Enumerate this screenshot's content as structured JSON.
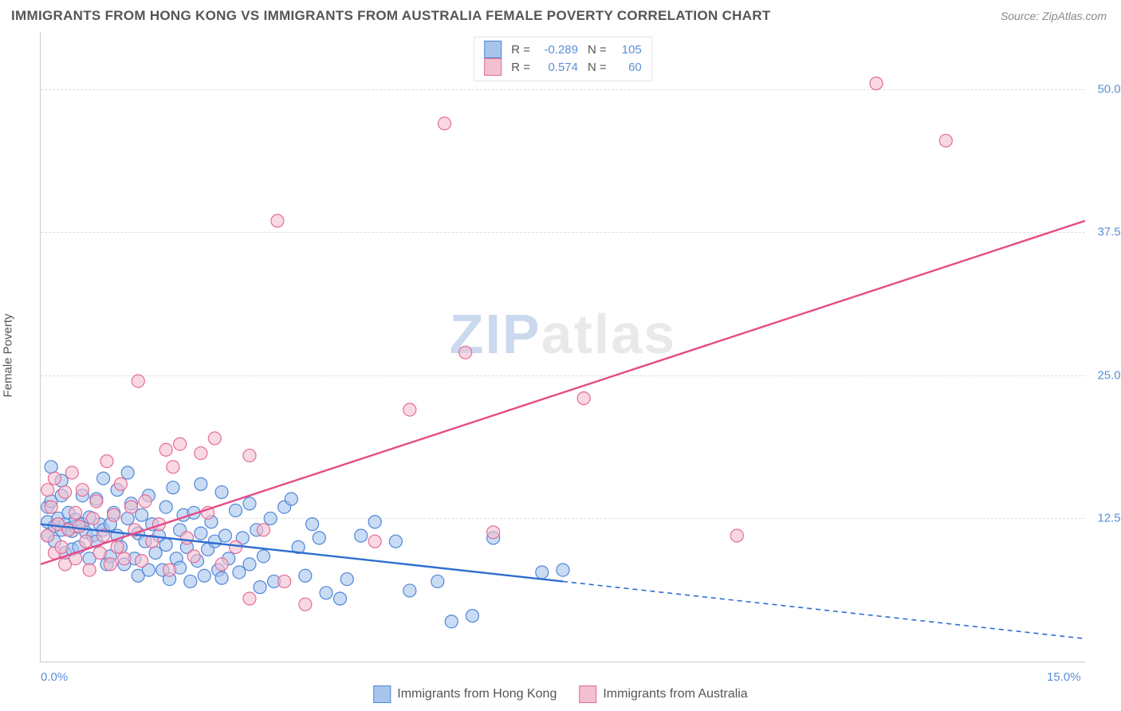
{
  "title": "IMMIGRANTS FROM HONG KONG VS IMMIGRANTS FROM AUSTRALIA FEMALE POVERTY CORRELATION CHART",
  "source": "Source: ZipAtlas.com",
  "watermark": {
    "zip": "ZIP",
    "atlas": "atlas"
  },
  "y_axis_title": "Female Poverty",
  "chart": {
    "type": "scatter-correlation",
    "background_color": "#ffffff",
    "grid_color": "#dddddd",
    "axis_color": "#cccccc",
    "tick_label_color": "#5b8fd6",
    "tick_fontsize": 15,
    "title_color": "#555555",
    "title_fontsize": 17,
    "xlim": [
      0,
      15
    ],
    "ylim": [
      0,
      55
    ],
    "y_ticks": [
      12.5,
      25.0,
      37.5,
      50.0
    ],
    "y_tick_labels": [
      "12.5%",
      "25.0%",
      "37.5%",
      "50.0%"
    ],
    "x_ticks": [
      0,
      15
    ],
    "x_tick_labels": [
      "0.0%",
      "15.0%"
    ],
    "marker_radius": 8,
    "marker_opacity": 0.6,
    "marker_stroke_width": 1.2,
    "trend_line_width": 2.4,
    "series": [
      {
        "name": "Immigrants from Hong Kong",
        "fill": "#a7c5ec",
        "stroke": "#4f86d9",
        "trend_color": "#2e6dd0",
        "R": "-0.289",
        "N": "105",
        "trend": {
          "x1": 0,
          "y1": 12.0,
          "x2": 15,
          "y2": 2.0,
          "solid_until_x": 7.5
        },
        "points": [
          [
            0.1,
            12.2
          ],
          [
            0.1,
            11.0
          ],
          [
            0.1,
            13.5
          ],
          [
            0.15,
            17.0
          ],
          [
            0.15,
            14.0
          ],
          [
            0.2,
            11.8
          ],
          [
            0.2,
            10.5
          ],
          [
            0.25,
            12.5
          ],
          [
            0.3,
            15.8
          ],
          [
            0.3,
            14.5
          ],
          [
            0.3,
            11.5
          ],
          [
            0.35,
            9.5
          ],
          [
            0.35,
            12.0
          ],
          [
            0.4,
            11.6
          ],
          [
            0.4,
            13.0
          ],
          [
            0.45,
            9.8
          ],
          [
            0.45,
            11.4
          ],
          [
            0.5,
            11.8
          ],
          [
            0.5,
            12.4
          ],
          [
            0.55,
            10.0
          ],
          [
            0.6,
            12.0
          ],
          [
            0.6,
            14.5
          ],
          [
            0.65,
            11.3
          ],
          [
            0.7,
            9.0
          ],
          [
            0.7,
            12.6
          ],
          [
            0.75,
            11.0
          ],
          [
            0.8,
            14.2
          ],
          [
            0.8,
            10.5
          ],
          [
            0.85,
            12.0
          ],
          [
            0.9,
            16.0
          ],
          [
            0.9,
            11.5
          ],
          [
            0.95,
            8.5
          ],
          [
            1.0,
            12.0
          ],
          [
            1.0,
            9.2
          ],
          [
            1.05,
            13.0
          ],
          [
            1.1,
            11.0
          ],
          [
            1.1,
            15.0
          ],
          [
            1.15,
            10.0
          ],
          [
            1.2,
            8.5
          ],
          [
            1.25,
            12.5
          ],
          [
            1.25,
            16.5
          ],
          [
            1.3,
            13.8
          ],
          [
            1.35,
            9.0
          ],
          [
            1.4,
            11.2
          ],
          [
            1.4,
            7.5
          ],
          [
            1.45,
            12.8
          ],
          [
            1.5,
            10.5
          ],
          [
            1.55,
            14.5
          ],
          [
            1.55,
            8.0
          ],
          [
            1.6,
            12.0
          ],
          [
            1.65,
            9.5
          ],
          [
            1.7,
            11.0
          ],
          [
            1.75,
            8.0
          ],
          [
            1.8,
            13.5
          ],
          [
            1.8,
            10.2
          ],
          [
            1.85,
            7.2
          ],
          [
            1.9,
            15.2
          ],
          [
            1.95,
            9.0
          ],
          [
            2.0,
            11.5
          ],
          [
            2.0,
            8.2
          ],
          [
            2.05,
            12.8
          ],
          [
            2.1,
            10.0
          ],
          [
            2.15,
            7.0
          ],
          [
            2.2,
            13.0
          ],
          [
            2.25,
            8.8
          ],
          [
            2.3,
            15.5
          ],
          [
            2.3,
            11.2
          ],
          [
            2.35,
            7.5
          ],
          [
            2.4,
            9.8
          ],
          [
            2.45,
            12.2
          ],
          [
            2.5,
            10.5
          ],
          [
            2.55,
            8.0
          ],
          [
            2.6,
            14.8
          ],
          [
            2.6,
            7.3
          ],
          [
            2.65,
            11.0
          ],
          [
            2.7,
            9.0
          ],
          [
            2.8,
            13.2
          ],
          [
            2.85,
            7.8
          ],
          [
            2.9,
            10.8
          ],
          [
            3.0,
            13.8
          ],
          [
            3.0,
            8.5
          ],
          [
            3.1,
            11.5
          ],
          [
            3.15,
            6.5
          ],
          [
            3.2,
            9.2
          ],
          [
            3.3,
            12.5
          ],
          [
            3.35,
            7.0
          ],
          [
            3.5,
            13.5
          ],
          [
            3.6,
            14.2
          ],
          [
            3.7,
            10.0
          ],
          [
            3.8,
            7.5
          ],
          [
            3.9,
            12.0
          ],
          [
            4.0,
            10.8
          ],
          [
            4.1,
            6.0
          ],
          [
            4.3,
            5.5
          ],
          [
            4.4,
            7.2
          ],
          [
            4.6,
            11.0
          ],
          [
            4.8,
            12.2
          ],
          [
            5.1,
            10.5
          ],
          [
            5.3,
            6.2
          ],
          [
            5.7,
            7.0
          ],
          [
            5.9,
            3.5
          ],
          [
            6.2,
            4.0
          ],
          [
            6.5,
            10.8
          ],
          [
            7.2,
            7.8
          ],
          [
            7.5,
            8.0
          ]
        ]
      },
      {
        "name": "Immigrants from Australia",
        "fill": "#f3c0cf",
        "stroke": "#e76b96",
        "trend_color": "#e64b87",
        "R": "0.574",
        "N": "60",
        "trend": {
          "x1": 0,
          "y1": 8.5,
          "x2": 15,
          "y2": 38.5,
          "solid_until_x": 15
        },
        "points": [
          [
            0.1,
            15.0
          ],
          [
            0.1,
            11.0
          ],
          [
            0.15,
            13.5
          ],
          [
            0.2,
            9.5
          ],
          [
            0.2,
            16.0
          ],
          [
            0.25,
            12.0
          ],
          [
            0.3,
            10.0
          ],
          [
            0.35,
            14.8
          ],
          [
            0.35,
            8.5
          ],
          [
            0.4,
            11.5
          ],
          [
            0.45,
            16.5
          ],
          [
            0.5,
            13.0
          ],
          [
            0.5,
            9.0
          ],
          [
            0.55,
            11.8
          ],
          [
            0.6,
            15.0
          ],
          [
            0.65,
            10.5
          ],
          [
            0.7,
            8.0
          ],
          [
            0.75,
            12.5
          ],
          [
            0.8,
            14.0
          ],
          [
            0.85,
            9.5
          ],
          [
            0.9,
            11.0
          ],
          [
            0.95,
            17.5
          ],
          [
            1.0,
            8.5
          ],
          [
            1.05,
            12.8
          ],
          [
            1.1,
            10.0
          ],
          [
            1.15,
            15.5
          ],
          [
            1.2,
            9.0
          ],
          [
            1.3,
            13.5
          ],
          [
            1.35,
            11.5
          ],
          [
            1.4,
            24.5
          ],
          [
            1.45,
            8.8
          ],
          [
            1.5,
            14.0
          ],
          [
            1.6,
            10.5
          ],
          [
            1.7,
            12.0
          ],
          [
            1.8,
            18.5
          ],
          [
            1.85,
            8.0
          ],
          [
            1.9,
            17.0
          ],
          [
            2.0,
            19.0
          ],
          [
            2.1,
            10.8
          ],
          [
            2.2,
            9.2
          ],
          [
            2.3,
            18.2
          ],
          [
            2.4,
            13.0
          ],
          [
            2.5,
            19.5
          ],
          [
            2.6,
            8.5
          ],
          [
            2.8,
            10.0
          ],
          [
            3.0,
            18.0
          ],
          [
            3.0,
            5.5
          ],
          [
            3.2,
            11.5
          ],
          [
            3.4,
            38.5
          ],
          [
            3.5,
            7.0
          ],
          [
            3.8,
            5.0
          ],
          [
            4.8,
            10.5
          ],
          [
            5.3,
            22.0
          ],
          [
            5.8,
            47.0
          ],
          [
            6.1,
            27.0
          ],
          [
            7.8,
            23.0
          ],
          [
            10.0,
            11.0
          ],
          [
            12.0,
            50.5
          ],
          [
            13.0,
            45.5
          ],
          [
            6.5,
            11.3
          ]
        ]
      }
    ]
  },
  "bottom_legend": [
    {
      "label": "Immigrants from Hong Kong",
      "fill": "#a7c5ec",
      "stroke": "#4f86d9"
    },
    {
      "label": "Immigrants from Australia",
      "fill": "#f3c0cf",
      "stroke": "#e76b96"
    }
  ]
}
